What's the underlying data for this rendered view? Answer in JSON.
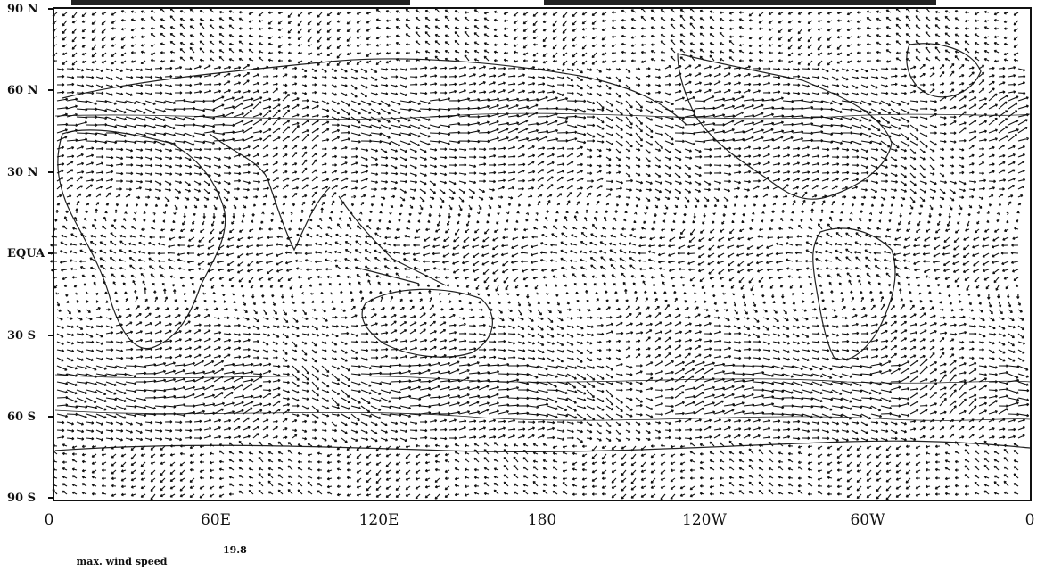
{
  "map": {
    "title_fragment": "",
    "y_axis": [
      "90 N",
      "60 N",
      "30 N",
      "EQUA",
      "30 S",
      "60 S",
      "90 S"
    ],
    "x_axis": [
      "0",
      "60E",
      "120E",
      "180",
      "120W",
      "60W",
      "0"
    ],
    "footer_label": "max. wind speed",
    "footer_value": "19.8",
    "ink_color": "#111111",
    "background": "#ffffff"
  }
}
